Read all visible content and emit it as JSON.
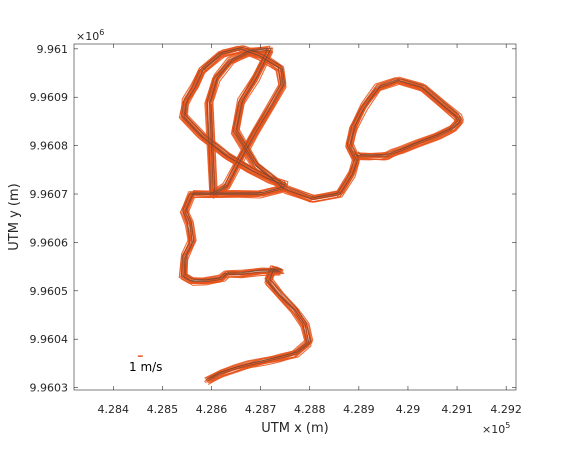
{
  "chart_data": {
    "type": "line",
    "title": "",
    "xlabel": "UTM x (m)",
    "ylabel": "UTM y (m)",
    "x_exponent_label": {
      "base": "×10",
      "power": "5"
    },
    "y_exponent_label": {
      "base": "×10",
      "power": "6"
    },
    "xlim": [
      428320,
      429220
    ],
    "ylim": [
      9960295,
      9961010
    ],
    "x_ticks": [
      428400,
      428500,
      428600,
      428700,
      428800,
      428900,
      429000,
      429100,
      429200
    ],
    "x_tick_labels": [
      "4.284",
      "4.285",
      "4.286",
      "4.287",
      "4.288",
      "4.289",
      "4.29",
      "4.291",
      "4.292"
    ],
    "y_ticks": [
      9960300,
      9960400,
      9960500,
      9960600,
      9960700,
      9960800,
      9960900,
      9961000
    ],
    "y_tick_labels": [
      "9.9603",
      "9.9604",
      "9.9605",
      "9.9606",
      "9.9607",
      "9.9608",
      "9.9609",
      "9.961"
    ],
    "grid": false,
    "legend": {
      "label": "1  m/s",
      "placement": "bottom-left",
      "arrow_start": [
        428450,
        9960365
      ],
      "arrow_end": [
        428460,
        9960365
      ]
    },
    "series_colors": {
      "track": "#6b4a3a",
      "velocity": "#e8541a"
    },
    "series": [
      {
        "role": "track",
        "x": [
          428592,
          428620,
          428650,
          428680,
          428710,
          428740,
          428770,
          428798,
          428790,
          428770,
          428740,
          428715,
          428725,
          428740,
          428700,
          428660,
          428630,
          428620,
          428590,
          428560,
          428543,
          428545,
          428560,
          428555,
          428545,
          428560,
          428600,
          428650,
          428700,
          428745,
          428747,
          428720,
          428680,
          428630,
          428580,
          428543,
          428547,
          428565,
          428580,
          428620,
          428660,
          428700,
          428740,
          428745,
          428720,
          428690,
          428660,
          428630,
          428603,
          428595,
          428610,
          428640,
          428680,
          428718,
          428690,
          428660,
          428648,
          428690,
          428750,
          428805,
          428860,
          428885,
          428895,
          428880,
          428890,
          428910,
          428940,
          428980,
          429030,
          429070,
          429100,
          429105,
          429090,
          429060,
          429020,
          428985,
          428970,
          428960,
          428950,
          428925,
          428900,
          428895
        ],
        "y": [
          9960315,
          9960330,
          9960340,
          9960348,
          9960355,
          9960362,
          9960370,
          9960392,
          9960430,
          9960460,
          9960490,
          9960520,
          9960545,
          9960540,
          9960540,
          9960535,
          9960535,
          9960525,
          9960520,
          9960520,
          9960530,
          9960570,
          9960600,
          9960640,
          9960665,
          9960700,
          9960700,
          9960700,
          9960700,
          9960712,
          9960720,
          9960730,
          9960750,
          9960780,
          9960820,
          9960860,
          9960890,
          9960920,
          9960955,
          9960990,
          9961000,
          9960985,
          9960960,
          9960925,
          9960880,
          9960830,
          9960775,
          9960715,
          9960700,
          9960890,
          9960940,
          9960975,
          9960995,
          9960998,
          9960940,
          9960890,
          9960830,
          9960760,
          9960710,
          9960690,
          9960700,
          9960740,
          9960770,
          9960800,
          9960840,
          9960880,
          9960920,
          9960935,
          9960920,
          9960885,
          9960860,
          9960850,
          9960835,
          9960820,
          9960805,
          9960790,
          9960785,
          9960780,
          9960778,
          9960778,
          9960778,
          9960782
        ]
      }
    ]
  }
}
